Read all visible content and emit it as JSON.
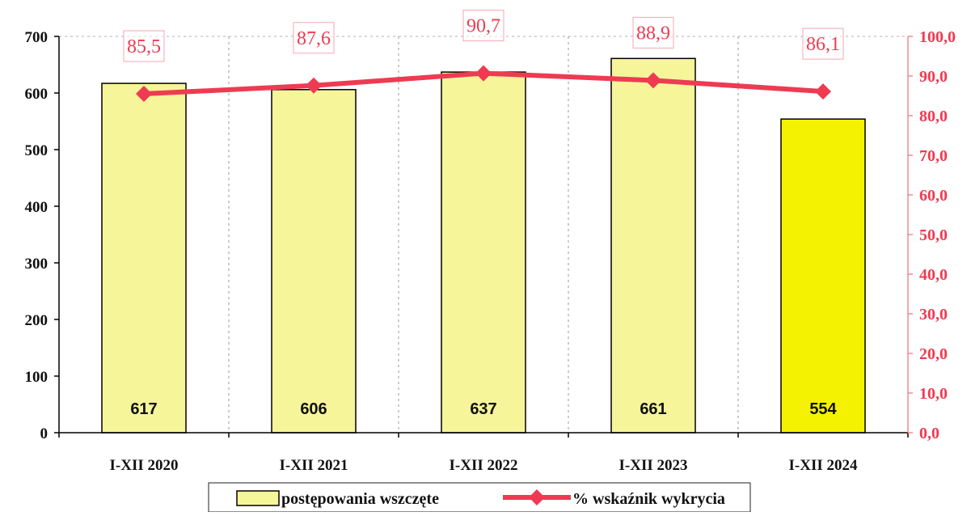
{
  "chart_data": {
    "type": "bar",
    "categories": [
      "I-XII 2020",
      "I-XII 2021",
      "I-XII 2022",
      "I-XII 2023",
      "I-XII 2024"
    ],
    "series": [
      {
        "name": "postępowania wszczęte",
        "type": "bar",
        "axis": "left",
        "values": [
          617,
          606,
          637,
          661,
          554
        ],
        "labels": [
          "617",
          "606",
          "637",
          "661",
          "554"
        ]
      },
      {
        "name": "% wskaźnik wykrycia",
        "type": "line",
        "axis": "right",
        "values": [
          85.5,
          87.6,
          90.7,
          88.9,
          86.1
        ],
        "labels": [
          "85,5",
          "87,6",
          "90,7",
          "88,9",
          "86,1"
        ]
      }
    ],
    "ylim_left": [
      0,
      700
    ],
    "yticks_left": [
      "0",
      "100",
      "200",
      "300",
      "400",
      "500",
      "600",
      "700"
    ],
    "ylim_right": [
      0,
      100
    ],
    "yticks_right": [
      "0,0",
      "10,0",
      "20,0",
      "30,0",
      "40,0",
      "50,0",
      "60,0",
      "70,0",
      "80,0",
      "90,0",
      "100,0"
    ],
    "grid": "vertical dashed",
    "legend_position": "bottom",
    "colors": {
      "bar_fill": "#f7f59a",
      "bar_fill_last": "#f4f200",
      "bar_stroke": "#000000",
      "line": "#ee3b52",
      "right_axis": "#f08a96",
      "right_tick_text": "#ee3b52",
      "label_box": "#f5a7b2"
    }
  }
}
